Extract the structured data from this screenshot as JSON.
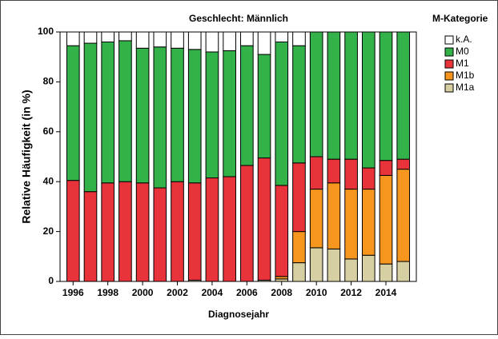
{
  "chart_data": {
    "type": "stacked-bar",
    "title": "Geschlecht: Männlich",
    "xlabel": "Diagnosejahr",
    "ylabel": "Relative Häufigkeit (in %)",
    "legend_title": "M-Kategorie",
    "legend": "right",
    "x": [
      1996,
      1997,
      1998,
      1999,
      2000,
      2001,
      2002,
      2003,
      2004,
      2005,
      2006,
      2007,
      2008,
      2009,
      2010,
      2011,
      2012,
      2013,
      2014,
      2015
    ],
    "xlim": [
      1995.25,
      2015.75
    ],
    "xticks": [
      1996,
      1998,
      2000,
      2002,
      2004,
      2006,
      2008,
      2010,
      2012,
      2014
    ],
    "ylim": [
      0,
      100
    ],
    "yticks": [
      0,
      20,
      40,
      60,
      80,
      100
    ],
    "series": [
      {
        "name": "M1a",
        "color": "#d6cfa1",
        "values": [
          0,
          0,
          0,
          0,
          0,
          0,
          0,
          0.5,
          0,
          0,
          0,
          0.5,
          1,
          7.5,
          13.5,
          13,
          9,
          10.5,
          7,
          8
        ]
      },
      {
        "name": "M1b",
        "color": "#f7961e",
        "values": [
          0,
          0,
          0,
          0,
          0,
          0,
          0,
          0,
          0,
          0,
          0,
          0,
          1,
          12.5,
          23.5,
          26.5,
          28,
          26.5,
          35.5,
          37
        ]
      },
      {
        "name": "M1",
        "color": "#e8333b",
        "values": [
          40.5,
          36,
          39.5,
          40,
          39.5,
          37.5,
          40,
          39,
          41.5,
          42,
          46.5,
          49,
          36.5,
          27.5,
          13,
          9.5,
          12,
          8.5,
          6,
          4
        ]
      },
      {
        "name": "M0",
        "color": "#33b24a",
        "values": [
          54,
          59.5,
          56.5,
          56.5,
          54,
          56.5,
          53.5,
          53.5,
          50.5,
          50.5,
          48,
          41.5,
          57.5,
          47,
          50,
          51,
          51,
          54.5,
          51.5,
          51
        ]
      },
      {
        "name": "k.A.",
        "color": "#ffffff",
        "values": [
          5.5,
          4.5,
          4,
          3.5,
          6.5,
          6,
          6.5,
          7,
          8,
          7.5,
          5.5,
          9,
          4,
          5.5,
          0,
          0,
          0,
          0,
          0,
          0
        ]
      }
    ]
  }
}
